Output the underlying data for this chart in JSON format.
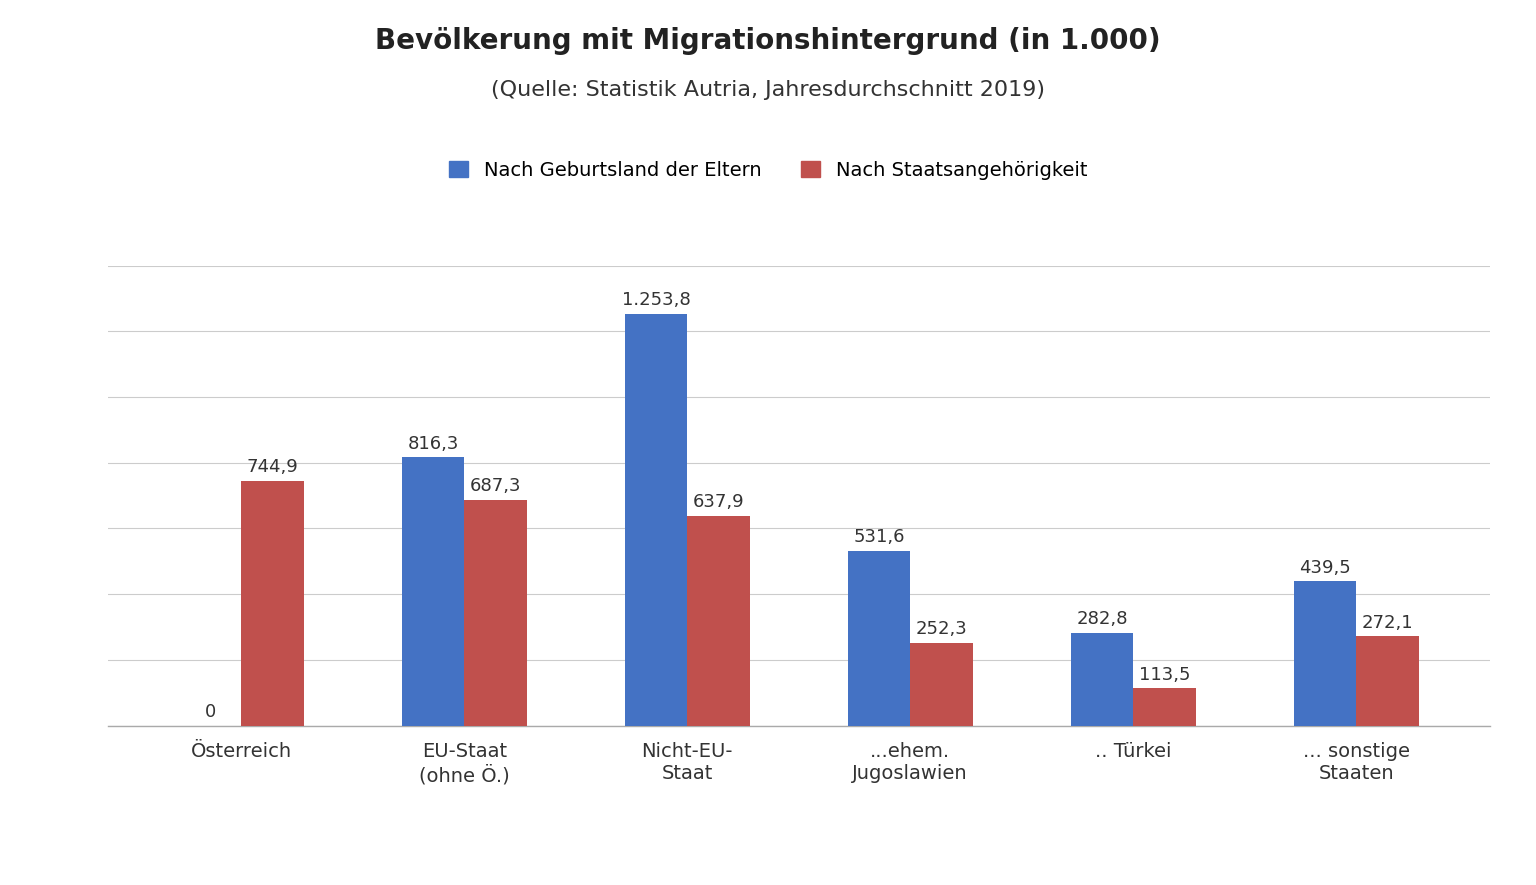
{
  "title": "Bevölkerung mit Migrationshintergrund (in 1.000)",
  "subtitle": "(Quelle: Statistik Autria, Jahresdurchschnitt 2019)",
  "categories": [
    "Österreich",
    "EU-Staat\n(ohne Ö.)",
    "Nicht-EU-\nStaat",
    "...ehem.\nJugoslawien",
    ".. Türkei",
    "... sonstige\nStaaten"
  ],
  "blue_values": [
    0,
    816.3,
    1253.8,
    531.6,
    282.8,
    439.5
  ],
  "red_values": [
    744.9,
    687.3,
    637.9,
    252.3,
    113.5,
    272.1
  ],
  "blue_labels": [
    "0",
    "816,3",
    "1.253,8",
    "531,6",
    "282,8",
    "439,5"
  ],
  "red_labels": [
    "744,9",
    "687,3",
    "637,9",
    "252,3",
    "113,5",
    "272,1"
  ],
  "blue_color": "#4472C4",
  "red_color": "#C0504D",
  "legend_blue": "Nach Geburtsland der Eltern",
  "legend_red": "Nach Staatsangehörigkeit",
  "ylim": [
    0,
    1400
  ],
  "background_color": "#FFFFFF",
  "title_fontsize": 20,
  "subtitle_fontsize": 16,
  "label_fontsize": 13,
  "tick_fontsize": 14,
  "legend_fontsize": 14,
  "bar_width": 0.28,
  "grid_color": "#CCCCCC"
}
